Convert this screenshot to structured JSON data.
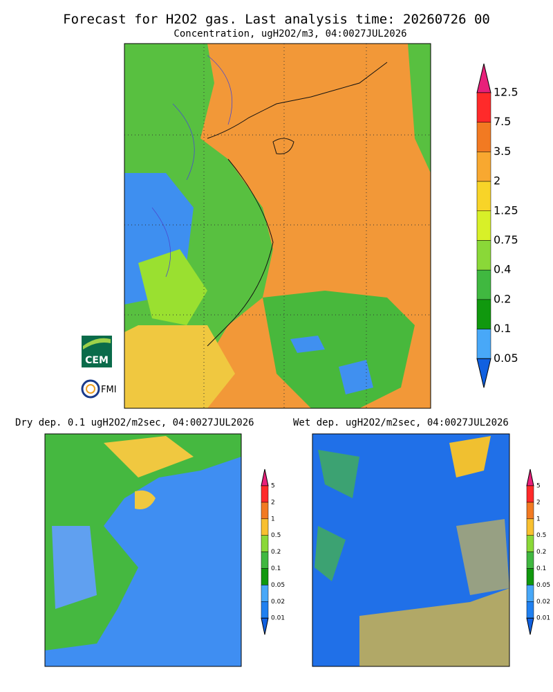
{
  "header": {
    "title": "Forecast for H2O2 gas. Last analysis time: 20260726 00",
    "subtitle": "Concentration, ugH2O2/m3, 04:0027JUL2026"
  },
  "main_colorbar": {
    "labels": [
      "12.5",
      "7.5",
      "3.5",
      "2",
      "1.25",
      "0.75",
      "0.4",
      "0.2",
      "0.1",
      "0.05"
    ]
  },
  "logos": {
    "cem": "CEM",
    "fmi": "FMI"
  },
  "panels": [
    {
      "title": "Dry dep. 0.1 ugH2O2/m2sec, 04:0027JUL2026",
      "colorbar_labels": [
        "5",
        "2",
        "1",
        "0.5",
        "0.2",
        "0.1",
        "0.05",
        "0.02",
        "0.01"
      ]
    },
    {
      "title": "Wet dep. ugH2O2/m2sec, 04:0027JUL2026",
      "colorbar_labels": [
        "5",
        "2",
        "1",
        "0.5",
        "0.2",
        "0.1",
        "0.05",
        "0.02",
        "0.01"
      ]
    }
  ]
}
